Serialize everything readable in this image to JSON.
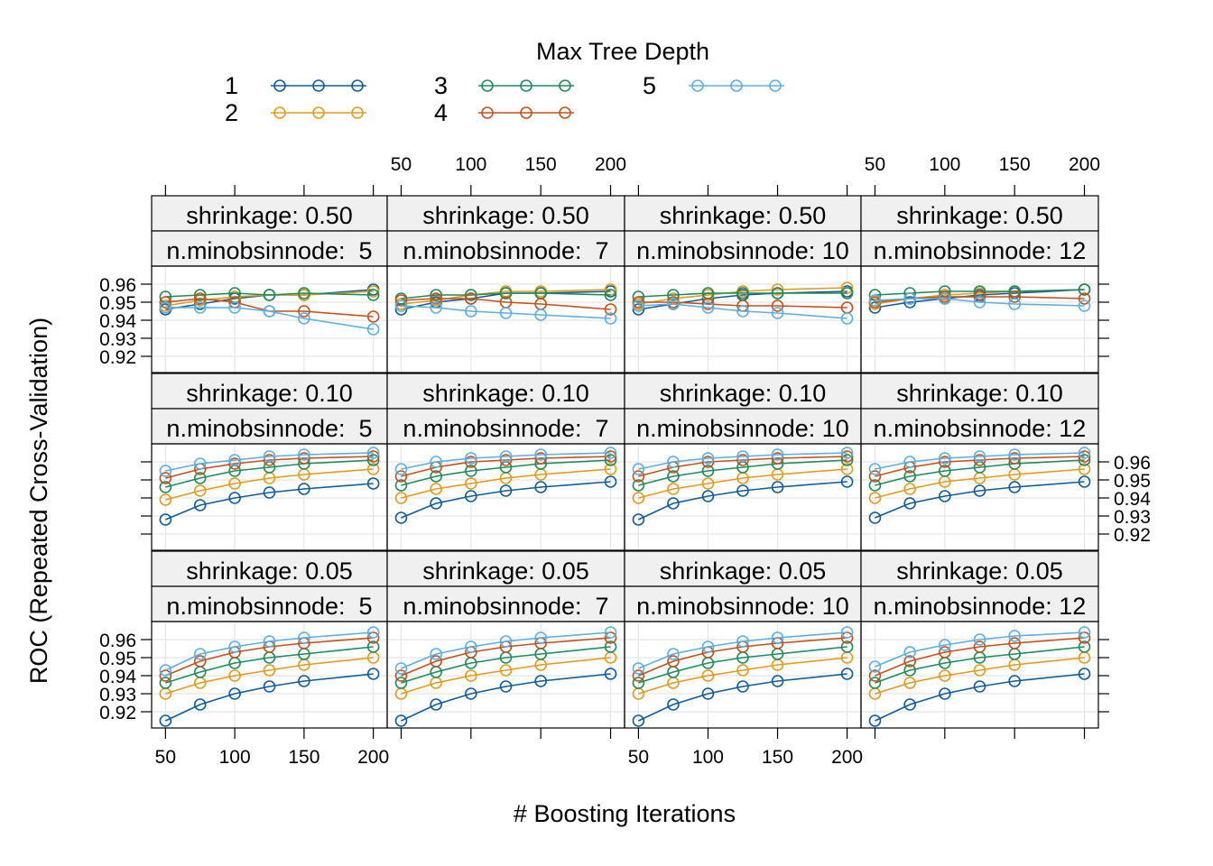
{
  "chart_data": {
    "type": "line",
    "legend_title": "Max Tree Depth",
    "legend_placement": "top",
    "xlabel": "# Boosting Iterations",
    "ylabel": "ROC (Repeated Cross-Validation)",
    "xlim": [
      40,
      210
    ],
    "ylim": [
      0.911,
      0.97
    ],
    "x_ticks": [
      50,
      100,
      150,
      200
    ],
    "y_ticks": [
      0.92,
      0.93,
      0.94,
      0.95,
      0.96
    ],
    "x": [
      50,
      75,
      100,
      125,
      150,
      200
    ],
    "grid": true,
    "series": [
      {
        "name": "1",
        "color": "#0F5C9C"
      },
      {
        "name": "2",
        "color": "#E39A1B"
      },
      {
        "name": "3",
        "color": "#1C8C5A"
      },
      {
        "name": "4",
        "color": "#C6501A"
      },
      {
        "name": "5",
        "color": "#5AAFE3"
      }
    ],
    "panels": [
      {
        "shrinkage": "shrinkage: 0.50",
        "minobs": "n.minobsinnode:  5",
        "values": [
          [
            0.946,
            0.949,
            0.952,
            0.954,
            0.954,
            0.957
          ],
          [
            0.948,
            0.951,
            0.953,
            0.954,
            0.954,
            0.956
          ],
          [
            0.953,
            0.954,
            0.955,
            0.954,
            0.955,
            0.954
          ],
          [
            0.95,
            0.952,
            0.95,
            0.945,
            0.945,
            0.942
          ],
          [
            0.947,
            0.947,
            0.947,
            0.945,
            0.941,
            0.935
          ]
        ]
      },
      {
        "shrinkage": "shrinkage: 0.50",
        "minobs": "n.minobsinnode:  7",
        "values": [
          [
            0.946,
            0.95,
            0.952,
            0.955,
            0.955,
            0.956
          ],
          [
            0.949,
            0.951,
            0.954,
            0.956,
            0.956,
            0.957
          ],
          [
            0.952,
            0.954,
            0.954,
            0.955,
            0.955,
            0.954
          ],
          [
            0.951,
            0.952,
            0.952,
            0.95,
            0.949,
            0.946
          ],
          [
            0.948,
            0.947,
            0.945,
            0.944,
            0.943,
            0.941
          ]
        ]
      },
      {
        "shrinkage": "shrinkage: 0.50",
        "minobs": "n.minobsinnode: 10",
        "values": [
          [
            0.946,
            0.949,
            0.952,
            0.954,
            0.955,
            0.956
          ],
          [
            0.949,
            0.952,
            0.954,
            0.956,
            0.957,
            0.958
          ],
          [
            0.953,
            0.954,
            0.955,
            0.955,
            0.955,
            0.955
          ],
          [
            0.95,
            0.95,
            0.949,
            0.948,
            0.948,
            0.947
          ],
          [
            0.948,
            0.949,
            0.947,
            0.945,
            0.944,
            0.941
          ]
        ]
      },
      {
        "shrinkage": "shrinkage: 0.50",
        "minobs": "n.minobsinnode: 12",
        "values": [
          [
            0.947,
            0.95,
            0.952,
            0.954,
            0.955,
            0.957
          ],
          [
            0.949,
            0.952,
            0.954,
            0.955,
            0.956,
            0.957
          ],
          [
            0.954,
            0.955,
            0.956,
            0.956,
            0.956,
            0.957
          ],
          [
            0.95,
            0.952,
            0.953,
            0.953,
            0.953,
            0.952
          ],
          [
            0.951,
            0.952,
            0.952,
            0.95,
            0.949,
            0.948
          ]
        ]
      },
      {
        "shrinkage": "shrinkage: 0.10",
        "minobs": "n.minobsinnode:  5",
        "values": [
          [
            0.928,
            0.936,
            0.94,
            0.943,
            0.945,
            0.948
          ],
          [
            0.939,
            0.944,
            0.948,
            0.951,
            0.953,
            0.956
          ],
          [
            0.946,
            0.951,
            0.955,
            0.957,
            0.959,
            0.961
          ],
          [
            0.951,
            0.956,
            0.959,
            0.961,
            0.962,
            0.963
          ],
          [
            0.955,
            0.959,
            0.961,
            0.963,
            0.964,
            0.965
          ]
        ]
      },
      {
        "shrinkage": "shrinkage: 0.10",
        "minobs": "n.minobsinnode:  7",
        "values": [
          [
            0.929,
            0.937,
            0.941,
            0.944,
            0.946,
            0.949
          ],
          [
            0.94,
            0.945,
            0.948,
            0.951,
            0.953,
            0.956
          ],
          [
            0.947,
            0.952,
            0.955,
            0.957,
            0.959,
            0.961
          ],
          [
            0.952,
            0.957,
            0.96,
            0.961,
            0.962,
            0.963
          ],
          [
            0.956,
            0.96,
            0.962,
            0.963,
            0.964,
            0.965
          ]
        ]
      },
      {
        "shrinkage": "shrinkage: 0.10",
        "minobs": "n.minobsinnode: 10",
        "values": [
          [
            0.928,
            0.937,
            0.941,
            0.944,
            0.946,
            0.949
          ],
          [
            0.94,
            0.945,
            0.948,
            0.951,
            0.953,
            0.956
          ],
          [
            0.947,
            0.952,
            0.955,
            0.957,
            0.959,
            0.961
          ],
          [
            0.952,
            0.957,
            0.96,
            0.961,
            0.962,
            0.963
          ],
          [
            0.956,
            0.96,
            0.962,
            0.963,
            0.964,
            0.965
          ]
        ]
      },
      {
        "shrinkage": "shrinkage: 0.10",
        "minobs": "n.minobsinnode: 12",
        "values": [
          [
            0.929,
            0.937,
            0.941,
            0.944,
            0.946,
            0.949
          ],
          [
            0.94,
            0.945,
            0.949,
            0.951,
            0.953,
            0.956
          ],
          [
            0.947,
            0.952,
            0.955,
            0.957,
            0.959,
            0.961
          ],
          [
            0.952,
            0.957,
            0.96,
            0.961,
            0.962,
            0.963
          ],
          [
            0.956,
            0.96,
            0.962,
            0.963,
            0.964,
            0.965
          ]
        ]
      },
      {
        "shrinkage": "shrinkage: 0.05",
        "minobs": "n.minobsinnode:  5",
        "values": [
          [
            0.915,
            0.924,
            0.93,
            0.934,
            0.937,
            0.941
          ],
          [
            0.93,
            0.936,
            0.94,
            0.943,
            0.946,
            0.95
          ],
          [
            0.936,
            0.942,
            0.947,
            0.95,
            0.952,
            0.956
          ],
          [
            0.94,
            0.948,
            0.953,
            0.956,
            0.958,
            0.961
          ],
          [
            0.943,
            0.952,
            0.956,
            0.959,
            0.961,
            0.964
          ]
        ]
      },
      {
        "shrinkage": "shrinkage: 0.05",
        "minobs": "n.minobsinnode:  7",
        "values": [
          [
            0.915,
            0.924,
            0.93,
            0.934,
            0.937,
            0.941
          ],
          [
            0.93,
            0.936,
            0.94,
            0.943,
            0.946,
            0.95
          ],
          [
            0.936,
            0.942,
            0.947,
            0.95,
            0.952,
            0.956
          ],
          [
            0.94,
            0.948,
            0.953,
            0.956,
            0.958,
            0.961
          ],
          [
            0.944,
            0.952,
            0.956,
            0.959,
            0.961,
            0.964
          ]
        ]
      },
      {
        "shrinkage": "shrinkage: 0.05",
        "minobs": "n.minobsinnode: 10",
        "values": [
          [
            0.915,
            0.924,
            0.93,
            0.934,
            0.937,
            0.941
          ],
          [
            0.93,
            0.936,
            0.94,
            0.943,
            0.946,
            0.95
          ],
          [
            0.936,
            0.942,
            0.947,
            0.95,
            0.952,
            0.956
          ],
          [
            0.94,
            0.948,
            0.953,
            0.956,
            0.958,
            0.961
          ],
          [
            0.944,
            0.952,
            0.956,
            0.959,
            0.961,
            0.964
          ]
        ]
      },
      {
        "shrinkage": "shrinkage: 0.05",
        "minobs": "n.minobsinnode: 12",
        "values": [
          [
            0.915,
            0.924,
            0.93,
            0.934,
            0.937,
            0.941
          ],
          [
            0.93,
            0.936,
            0.94,
            0.943,
            0.946,
            0.95
          ],
          [
            0.936,
            0.943,
            0.947,
            0.95,
            0.952,
            0.956
          ],
          [
            0.94,
            0.948,
            0.953,
            0.956,
            0.958,
            0.961
          ],
          [
            0.945,
            0.953,
            0.957,
            0.96,
            0.962,
            0.964
          ]
        ]
      }
    ]
  }
}
